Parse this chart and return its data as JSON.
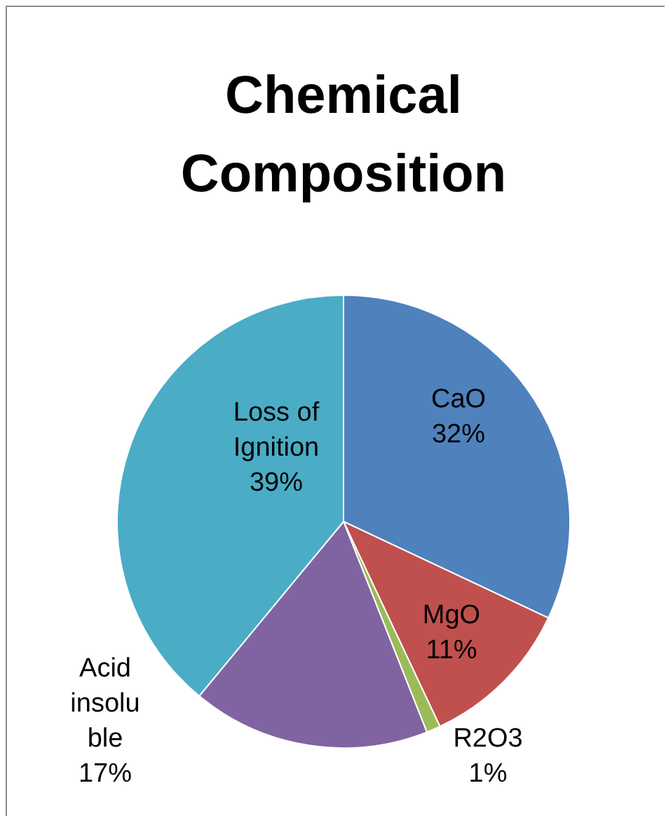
{
  "chart_data": {
    "type": "pie",
    "title": "Chemical Composition",
    "categories": [
      "CaO",
      "MgO",
      "R2O3",
      "Acid insoluble",
      "Loss of Ignition"
    ],
    "values": [
      32,
      11,
      1,
      17,
      39
    ],
    "value_labels": [
      "32%",
      "11%",
      "1%",
      "17%",
      "39%"
    ],
    "colors": [
      "#4f81bd",
      "#c0504d",
      "#9bbb59",
      "#8064a2",
      "#4bacc6"
    ],
    "legend": false
  }
}
